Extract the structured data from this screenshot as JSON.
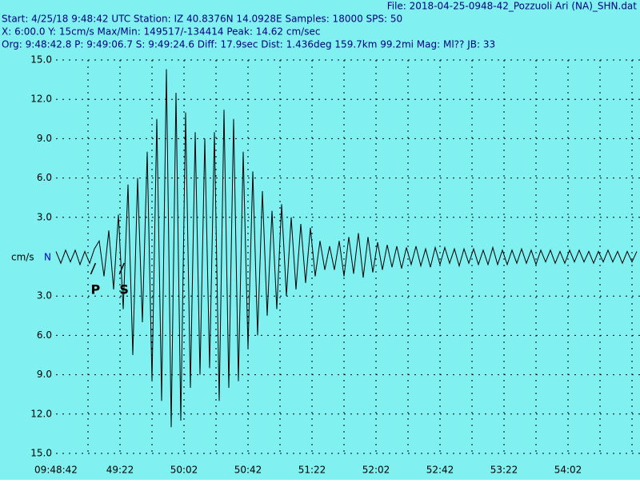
{
  "header": {
    "file": "File: 2018-04-25-0948-42_Pozzuoli Ari (NA)_SHN.dat",
    "start": "Start: 4/25/18  9:48:42 UTC Station: IZ 40.8376N 14.0928E Samples: 18000  SPS: 50",
    "scale": " X: 6:00.0 Y: 15cm/s Max/Min: 149517/-134414  Peak: 14.62 cm/sec",
    "origin": "Org: 9:48:42.8 P: 9:49:06.7 S: 9:49:24.6 Diff: 17.9sec Dist: 1.436deg 159.7km 99.2mi  Mag: Ml?? JB: 33"
  },
  "chart_data": {
    "type": "line",
    "ylabel": "cm/s",
    "channel": "N",
    "color": "#000000",
    "background": "#80f0f0",
    "grid": true,
    "xlim": [
      0,
      365
    ],
    "ylim": [
      -15,
      15
    ],
    "xticks": [
      {
        "value": 0,
        "label": "09:48:42"
      },
      {
        "value": 40,
        "label": "49:22"
      },
      {
        "value": 80,
        "label": "50:02"
      },
      {
        "value": 120,
        "label": "50:42"
      },
      {
        "value": 160,
        "label": "51:22"
      },
      {
        "value": 200,
        "label": "52:02"
      },
      {
        "value": 240,
        "label": "52:42"
      },
      {
        "value": 280,
        "label": "53:22"
      },
      {
        "value": 320,
        "label": "54:02"
      }
    ],
    "xminor_ticks": [
      20,
      60,
      100,
      140,
      180,
      220,
      260,
      300,
      340,
      360
    ],
    "yticks": [
      {
        "value": 15,
        "label": "15.0"
      },
      {
        "value": 12,
        "label": "12.0"
      },
      {
        "value": 9,
        "label": "9.0"
      },
      {
        "value": 6,
        "label": "6.0"
      },
      {
        "value": 3,
        "label": "3.0"
      },
      {
        "value": -3,
        "label": "3.0"
      },
      {
        "value": -6,
        "label": "6.0"
      },
      {
        "value": -9,
        "label": "9.0"
      },
      {
        "value": -12,
        "label": "12.0"
      },
      {
        "value": -15,
        "label": "15.0"
      }
    ],
    "annotations": [
      {
        "text": "P",
        "x": 24.7
      },
      {
        "text": "S",
        "x": 42.6
      }
    ],
    "x": [
      0,
      3,
      6,
      9,
      12,
      15,
      18,
      21,
      24,
      27,
      30,
      33,
      36,
      39,
      42,
      45,
      48,
      51,
      54,
      57,
      60,
      63,
      66,
      69,
      72,
      75,
      78,
      81,
      84,
      87,
      90,
      93,
      96,
      99,
      102,
      105,
      108,
      111,
      114,
      117,
      120,
      123,
      126,
      129,
      132,
      135,
      138,
      141,
      144,
      147,
      150,
      153,
      156,
      159,
      162,
      165,
      168,
      171,
      174,
      177,
      180,
      183,
      186,
      189,
      192,
      195,
      198,
      201,
      204,
      207,
      210,
      213,
      216,
      219,
      222,
      225,
      228,
      231,
      234,
      237,
      240,
      243,
      246,
      249,
      252,
      255,
      258,
      261,
      264,
      267,
      270,
      273,
      276,
      279,
      282,
      285,
      288,
      291,
      294,
      297,
      300,
      303,
      306,
      309,
      312,
      315,
      318,
      321,
      324,
      327,
      330,
      333,
      336,
      339,
      342,
      345,
      348,
      351,
      354,
      357,
      360,
      363
    ],
    "values": [
      0.4,
      -0.5,
      0.5,
      -0.4,
      0.5,
      -0.6,
      0.4,
      -0.5,
      0.6,
      1.2,
      -1.5,
      2.0,
      -2.5,
      3.2,
      -4.0,
      5.5,
      -7.5,
      6.0,
      -5.0,
      8.0,
      -9.5,
      10.5,
      -11.0,
      14.3,
      -13.0,
      12.5,
      -12.5,
      11.0,
      -10.0,
      9.5,
      -9.0,
      9.0,
      -8.5,
      9.5,
      -11.0,
      11.2,
      -10.0,
      10.5,
      -9.5,
      8.0,
      -7.0,
      6.5,
      -6.0,
      5.0,
      -4.5,
      3.5,
      -4.0,
      4.0,
      -3.0,
      3.0,
      -2.5,
      2.5,
      -2.0,
      2.2,
      -1.5,
      1.2,
      -1.0,
      0.8,
      -1.0,
      1.2,
      -1.5,
      1.5,
      -1.3,
      1.8,
      -1.6,
      1.5,
      -1.2,
      1.1,
      -1.0,
      0.9,
      -0.8,
      0.8,
      -0.9,
      0.7,
      -0.6,
      0.8,
      -0.7,
      0.6,
      -0.8,
      0.7,
      -0.6,
      0.7,
      -0.5,
      0.6,
      -0.7,
      0.6,
      -0.5,
      0.6,
      -0.6,
      0.5,
      -0.6,
      0.7,
      -0.6,
      0.5,
      -0.6,
      0.5,
      -0.5,
      0.6,
      -0.5,
      0.5,
      -0.6,
      0.5,
      -0.4,
      0.5,
      -0.5,
      0.4,
      -0.5,
      0.5,
      -0.4,
      0.5,
      -0.4,
      0.4,
      -0.5,
      0.4,
      -0.4,
      0.5,
      -0.4,
      0.4,
      -0.5,
      0.4,
      -0.4,
      0.4
    ]
  }
}
